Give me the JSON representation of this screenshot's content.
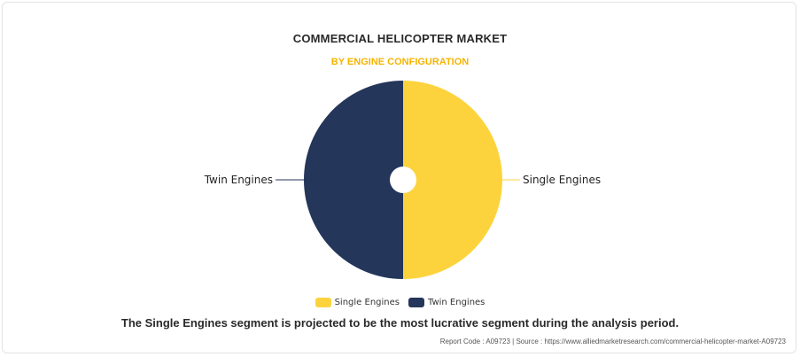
{
  "header": {
    "title": "COMMERCIAL HELICOPTER MARKET",
    "subtitle": "BY ENGINE CONFIGURATION"
  },
  "chart_data": {
    "type": "pie",
    "title": "COMMERCIAL HELICOPTER MARKET",
    "subtitle": "BY ENGINE CONFIGURATION",
    "categories": [
      "Single Engines",
      "Twin Engines"
    ],
    "values": [
      50,
      50
    ],
    "colors": [
      "#fdd33d",
      "#243659"
    ],
    "donut_hole": true,
    "legend_position": "bottom"
  },
  "legend": {
    "items": [
      {
        "label": "Single Engines",
        "color": "#fdd33d"
      },
      {
        "label": "Twin Engines",
        "color": "#243659"
      }
    ]
  },
  "summary": "The Single Engines segment is projected to be the most lucrative segment during the analysis period.",
  "footer": "Report Code : A09723  |  Source : https://www.alliedmarketresearch.com/commercial-helicopter-market-A09723"
}
